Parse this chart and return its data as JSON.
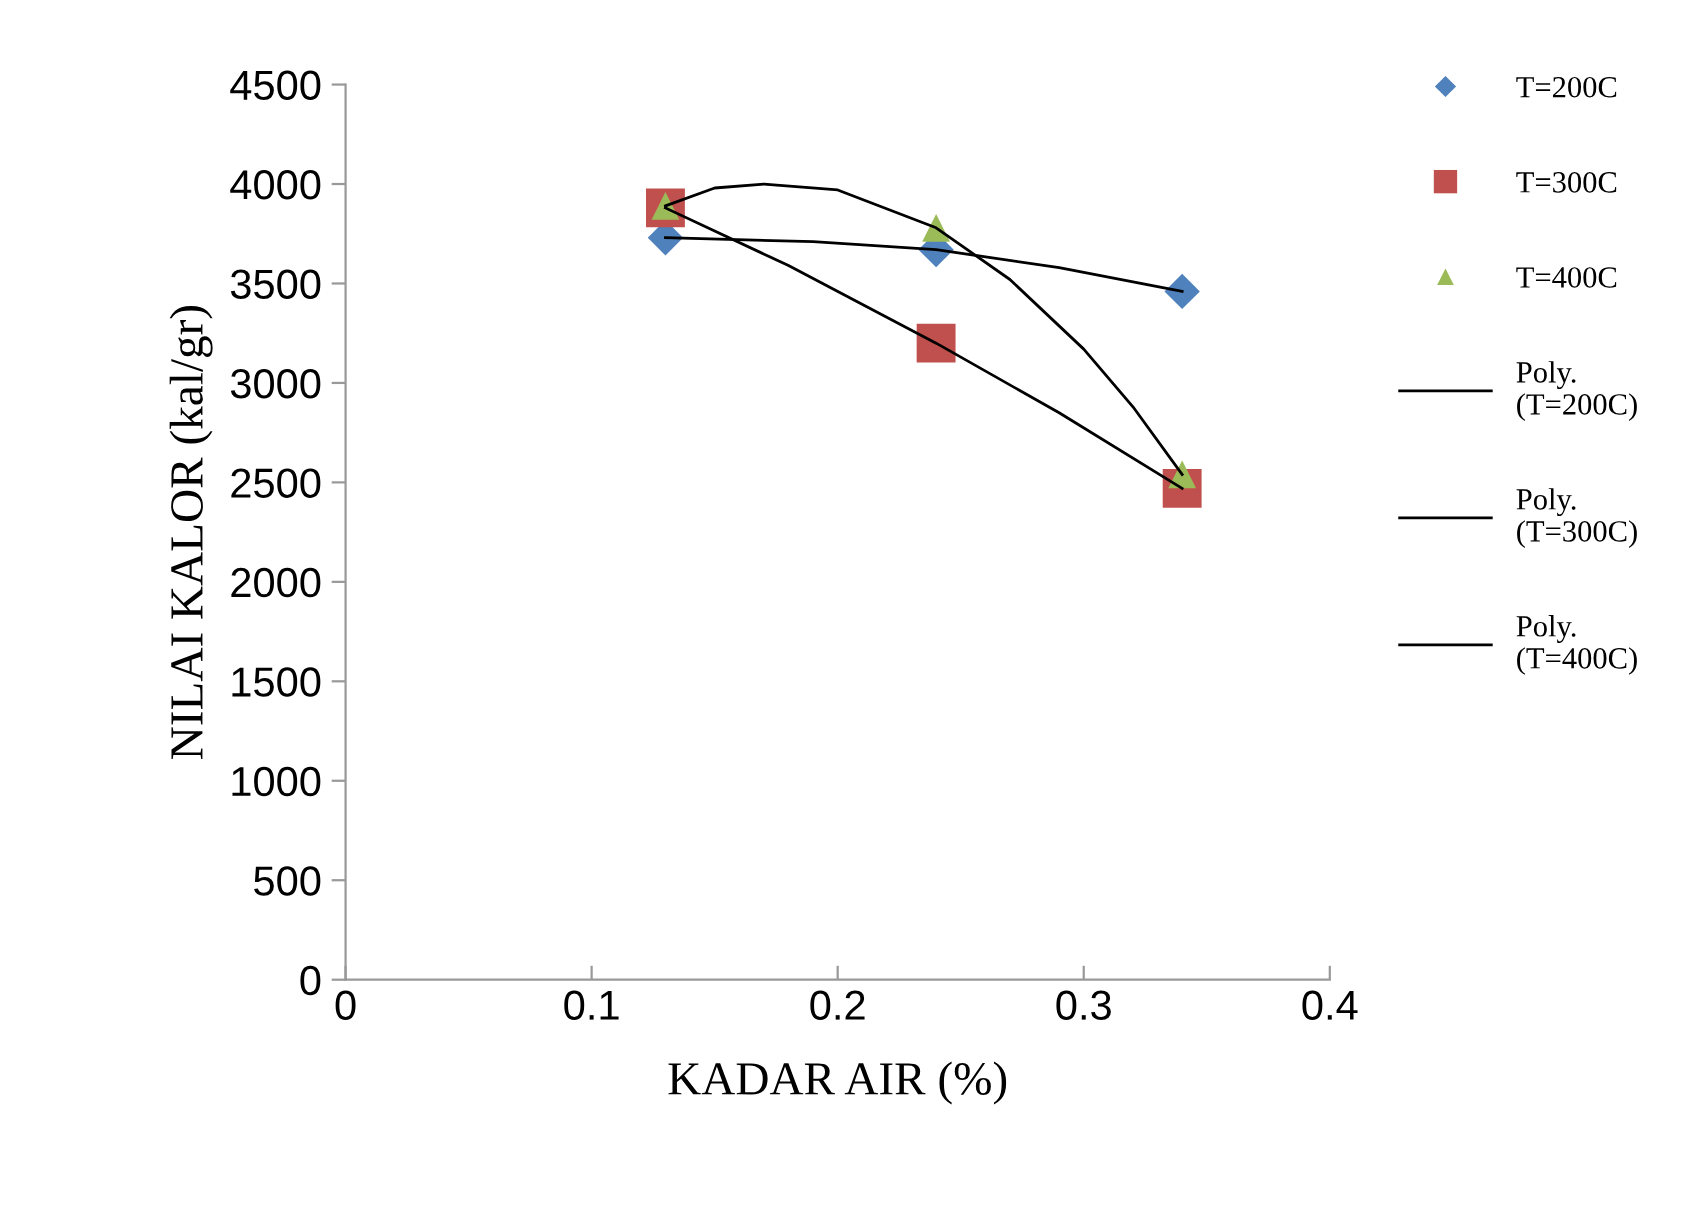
{
  "chart_data": {
    "type": "scatter",
    "xlabel": "KADAR AIR (%)",
    "ylabel": "NILAI KALOR (kal/gr)",
    "xlim": [
      0,
      0.4
    ],
    "xticks": [
      0,
      0.1,
      0.2,
      0.3,
      0.4
    ],
    "ylim": [
      0,
      4500
    ],
    "yticks": [
      0,
      500,
      1000,
      1500,
      2000,
      2500,
      3000,
      3500,
      4000,
      4500
    ],
    "grid": false,
    "legend": "right",
    "series": [
      {
        "name": "T=200C",
        "color": "#4f81bd",
        "marker": "diamond",
        "x": [
          0.13,
          0.24,
          0.34
        ],
        "values": [
          3730,
          3670,
          3460
        ]
      },
      {
        "name": "T=300C",
        "color": "#c0504d",
        "marker": "square",
        "x": [
          0.13,
          0.24,
          0.34
        ],
        "values": [
          3880,
          3200,
          2470
        ]
      },
      {
        "name": "T=400C",
        "color": "#9bbb59",
        "marker": "triangle",
        "x": [
          0.13,
          0.24,
          0.34
        ],
        "values": [
          3890,
          3780,
          2540
        ]
      },
      {
        "name": "Poly.\n(T=200C)",
        "type": "line",
        "color": "#000000",
        "marker": "none",
        "line_style": "solid",
        "x": [
          0.13,
          0.19,
          0.24,
          0.29,
          0.34
        ],
        "values": [
          3730,
          3710,
          3670,
          3580,
          3460
        ]
      },
      {
        "name": "Poly.\n(T=300C)",
        "type": "line",
        "color": "#000000",
        "marker": "none",
        "line_style": "solid",
        "x": [
          0.13,
          0.18,
          0.24,
          0.29,
          0.34
        ],
        "values": [
          3880,
          3590,
          3200,
          2850,
          2470
        ]
      },
      {
        "name": "Poly.\n(T=400C)",
        "type": "line",
        "color": "#000000",
        "marker": "none",
        "line_style": "solid",
        "x": [
          0.13,
          0.15,
          0.17,
          0.2,
          0.24,
          0.27,
          0.3,
          0.32,
          0.34
        ],
        "values": [
          3890,
          3980,
          4000,
          3970,
          3780,
          3520,
          3170,
          2880,
          2540
        ]
      }
    ]
  }
}
